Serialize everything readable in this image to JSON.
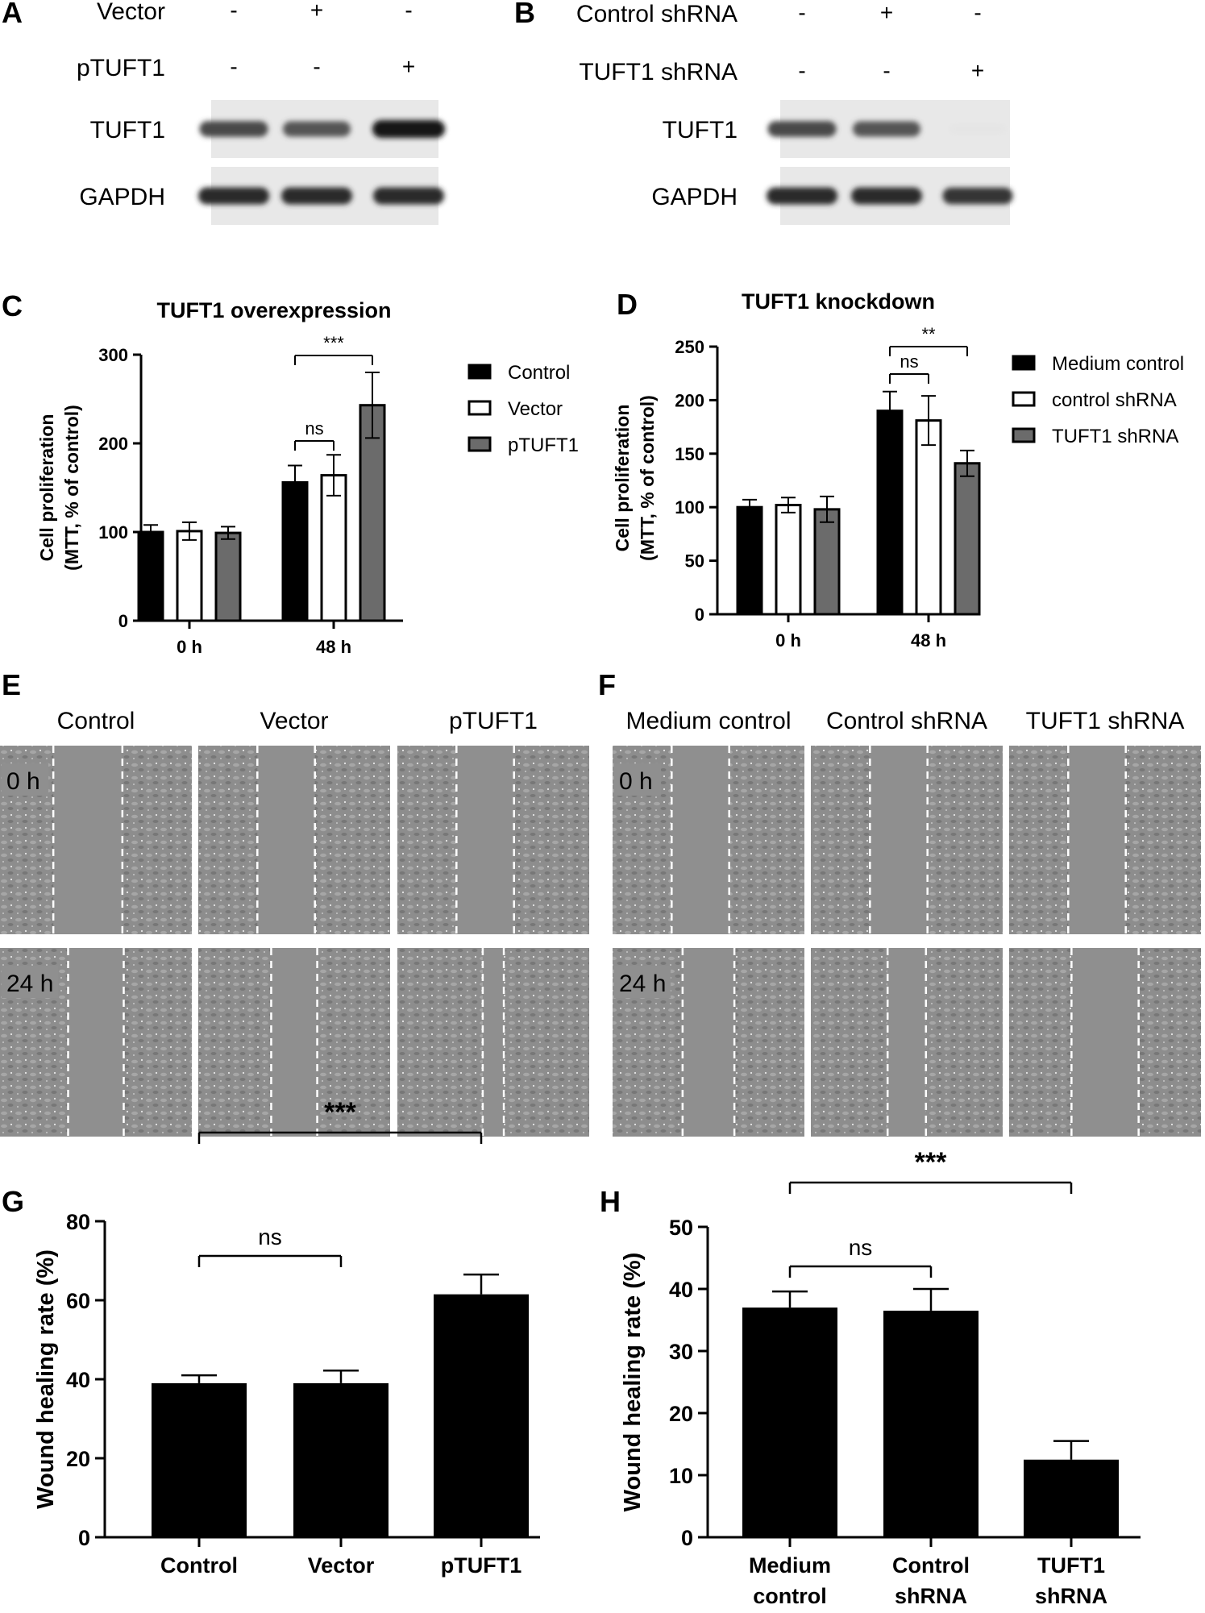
{
  "figure": {
    "panels": {
      "A": {
        "letter": "A",
        "rows": [
          {
            "label": "Vector",
            "marks": [
              "-",
              "+",
              "-"
            ]
          },
          {
            "label": "pTUFT1",
            "marks": [
              "-",
              "-",
              "+"
            ]
          }
        ],
        "blots": [
          "TUFT1",
          "GAPDH"
        ],
        "band_intensity": {
          "TUFT1": [
            0.75,
            0.7,
            1.0
          ],
          "GAPDH": [
            0.9,
            0.9,
            0.9
          ]
        }
      },
      "B": {
        "letter": "B",
        "rows": [
          {
            "label": "Control shRNA",
            "marks": [
              "-",
              "+",
              "-"
            ]
          },
          {
            "label": "TUFT1 shRNA",
            "marks": [
              "-",
              "-",
              "+"
            ]
          }
        ],
        "blots": [
          "TUFT1",
          "GAPDH"
        ],
        "band_intensity": {
          "TUFT1": [
            0.75,
            0.7,
            0.03
          ],
          "GAPDH": [
            0.9,
            0.9,
            0.85
          ]
        }
      },
      "E": {
        "letter": "E",
        "columns": [
          "Control",
          "Vector",
          "pTUFT1"
        ],
        "rows": [
          "0 h",
          "24 h"
        ],
        "gap_fraction": [
          [
            0.36,
            0.3,
            0.3
          ],
          [
            0.29,
            0.24,
            0.11
          ]
        ]
      },
      "F": {
        "letter": "F",
        "columns": [
          "Medium control",
          "Control shRNA",
          "TUFT1 shRNA"
        ],
        "rows": [
          "0 h",
          "24 h"
        ],
        "gap_fraction": [
          [
            0.3,
            0.3,
            0.3
          ],
          [
            0.27,
            0.2,
            0.35
          ]
        ]
      }
    },
    "colors": {
      "black": "#000000",
      "white": "#ffffff",
      "gray": "#6b6b6b",
      "micro_bg": "#8f8f8f"
    }
  },
  "chart_data": [
    {
      "panel": "C",
      "type": "bar",
      "title": "TUFT1 overexpression",
      "xlabel": "",
      "ylabel": [
        "Cell proliferation",
        "(MTT, % of control)"
      ],
      "ylim": [
        0,
        300
      ],
      "yticks": [
        "0",
        "100",
        "200",
        "300"
      ],
      "categories": [
        "0 h",
        "48 h"
      ],
      "series": [
        {
          "name": "Control",
          "color": "#000000",
          "values": [
            100,
            156
          ],
          "errors": [
            8,
            19
          ]
        },
        {
          "name": "Vector",
          "color": "#ffffff",
          "values": [
            101,
            164
          ],
          "errors": [
            10,
            23
          ]
        },
        {
          "name": "pTUFT1",
          "color": "#6b6b6b",
          "values": [
            99,
            243
          ],
          "errors": [
            7,
            37
          ]
        }
      ],
      "legend": "right",
      "annotations": [
        {
          "text": "ns",
          "category": 1,
          "from": 0,
          "to": 1
        },
        {
          "text": "***",
          "category": 1,
          "from": 0,
          "to": 2
        }
      ]
    },
    {
      "panel": "D",
      "type": "bar",
      "title": "TUFT1 knockdown",
      "xlabel": "",
      "ylabel": [
        "Cell proliferation",
        "(MTT, % of control)"
      ],
      "ylim": [
        0,
        250
      ],
      "yticks": [
        "0",
        "50",
        "100",
        "150",
        "200",
        "250"
      ],
      "categories": [
        "0 h",
        "48 h"
      ],
      "series": [
        {
          "name": "Medium control",
          "color": "#000000",
          "values": [
            100,
            190
          ],
          "errors": [
            7,
            18
          ]
        },
        {
          "name": "control shRNA",
          "color": "#ffffff",
          "values": [
            102,
            181
          ],
          "errors": [
            7,
            23
          ]
        },
        {
          "name": "TUFT1 shRNA",
          "color": "#6b6b6b",
          "values": [
            98,
            141
          ],
          "errors": [
            12,
            12
          ]
        }
      ],
      "legend": "right",
      "annotations": [
        {
          "text": "ns",
          "category": 1,
          "from": 0,
          "to": 1
        },
        {
          "text": "**",
          "category": 1,
          "from": 0,
          "to": 2
        }
      ]
    },
    {
      "panel": "G",
      "type": "bar",
      "title": "",
      "xlabel": "",
      "ylabel": [
        "Wound healing rate (%)"
      ],
      "ylim": [
        0,
        80
      ],
      "yticks": [
        "0",
        "20",
        "40",
        "60",
        "80"
      ],
      "categories": [
        [
          "Control"
        ],
        [
          "Vector"
        ],
        [
          "pTUFT1"
        ]
      ],
      "values": [
        39,
        39,
        61.5
      ],
      "errors": [
        2,
        3.2,
        5
      ],
      "color": "#000000",
      "annotations": [
        {
          "text": "ns",
          "from": 0,
          "to": 1
        },
        {
          "text": "***",
          "from": 0,
          "to": 2
        }
      ]
    },
    {
      "panel": "H",
      "type": "bar",
      "title": "",
      "xlabel": "",
      "ylabel": [
        "Wound healing rate (%)"
      ],
      "ylim": [
        0,
        50
      ],
      "yticks": [
        "0",
        "10",
        "20",
        "30",
        "40",
        "50"
      ],
      "categories": [
        [
          "Medium",
          "control"
        ],
        [
          "Control",
          "shRNA"
        ],
        [
          "TUFT1",
          "shRNA"
        ]
      ],
      "values": [
        37,
        36.5,
        12.5
      ],
      "errors": [
        2.6,
        3.5,
        3
      ],
      "color": "#000000",
      "annotations": [
        {
          "text": "ns",
          "from": 0,
          "to": 1
        },
        {
          "text": "***",
          "from": 0,
          "to": 2
        }
      ]
    }
  ]
}
